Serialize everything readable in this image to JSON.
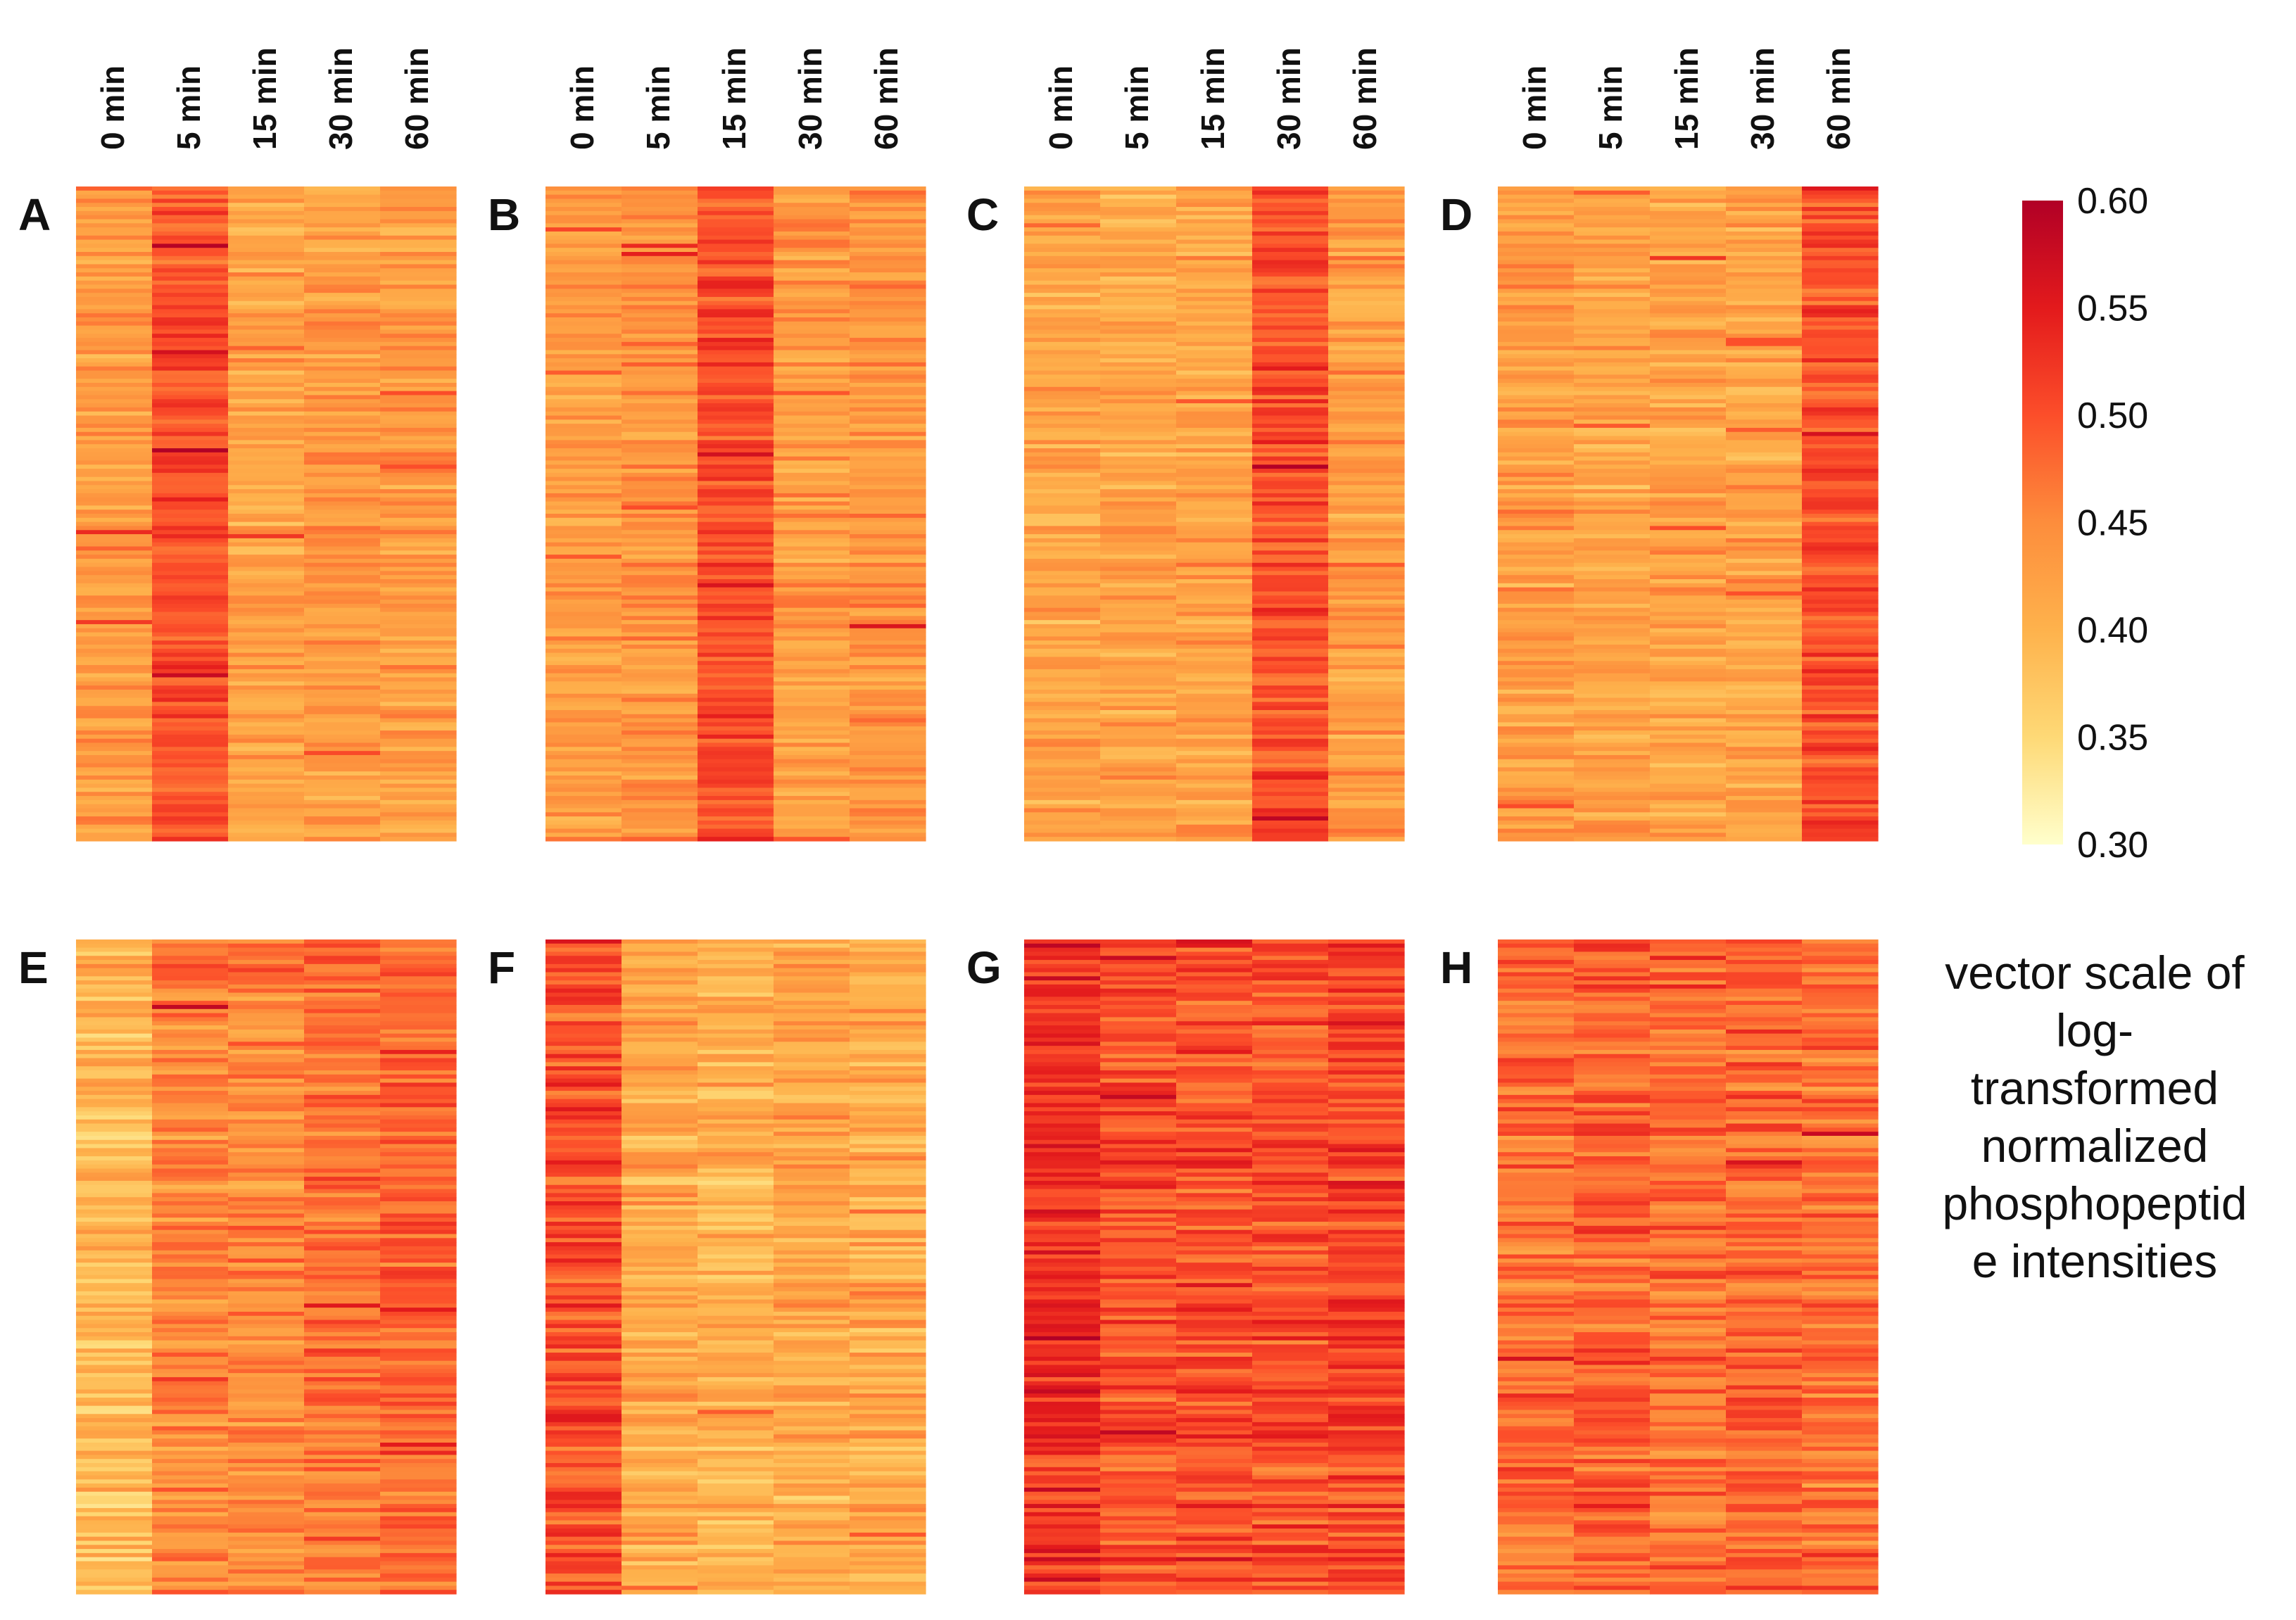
{
  "chart_data": {
    "type": "heatmap",
    "time_points": [
      "0 min",
      "5 min",
      "15 min",
      "30 min",
      "60 min"
    ],
    "color_scale": {
      "min": 0.3,
      "max": 0.6,
      "ticks": [
        "0.60",
        "0.55",
        "0.50",
        "0.45",
        "0.40",
        "0.35",
        "0.30"
      ],
      "colors": [
        "#ffffcc",
        "#fed976",
        "#feb24c",
        "#fd8d3c",
        "#fc4e2a",
        "#e31a1c",
        "#b10026"
      ],
      "label_lines": [
        "vector scale of",
        "log-",
        "transformed",
        "normalized",
        "phosphopeptid",
        "e intensities"
      ]
    },
    "panels": [
      {
        "label": "A",
        "show_time_labels": true,
        "column_means": [
          0.43,
          0.5,
          0.42,
          0.43,
          0.43
        ],
        "spread": 0.025
      },
      {
        "label": "B",
        "show_time_labels": true,
        "column_means": [
          0.43,
          0.44,
          0.5,
          0.43,
          0.44
        ],
        "spread": 0.025
      },
      {
        "label": "C",
        "show_time_labels": true,
        "column_means": [
          0.42,
          0.42,
          0.42,
          0.5,
          0.43
        ],
        "spread": 0.025
      },
      {
        "label": "D",
        "show_time_labels": true,
        "column_means": [
          0.43,
          0.42,
          0.42,
          0.42,
          0.5
        ],
        "spread": 0.025
      },
      {
        "label": "E",
        "show_time_labels": false,
        "column_means": [
          0.39,
          0.45,
          0.45,
          0.47,
          0.48
        ],
        "spread": 0.03
      },
      {
        "label": "F",
        "show_time_labels": false,
        "column_means": [
          0.5,
          0.41,
          0.4,
          0.41,
          0.41
        ],
        "spread": 0.03
      },
      {
        "label": "G",
        "show_time_labels": false,
        "column_means": [
          0.53,
          0.5,
          0.5,
          0.5,
          0.51
        ],
        "spread": 0.03
      },
      {
        "label": "H",
        "show_time_labels": false,
        "column_means": [
          0.47,
          0.48,
          0.47,
          0.48,
          0.47
        ],
        "spread": 0.03
      }
    ]
  }
}
